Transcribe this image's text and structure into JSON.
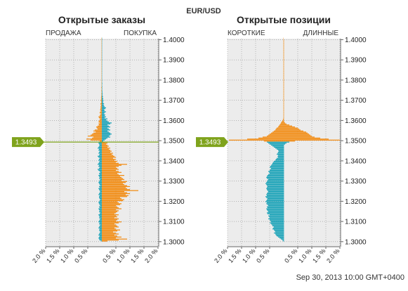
{
  "pair": "EUR/USD",
  "footer": "Sep 30, 2013 10:00 GMT+0400",
  "current_price": "1.3493",
  "colors": {
    "buy": "#1ba3b8",
    "sell": "#f28c13",
    "price_line": "#7fa31c",
    "panel_bg": "#ececec",
    "grid": "#8f8f8f"
  },
  "chart_data": [
    {
      "type": "bar",
      "title": "Открытые заказы",
      "left_label": "ПРОДАЖА",
      "right_label": "ПОКУПКА",
      "ylim": [
        1.2975,
        1.4005
      ],
      "xlim": [
        -2.0,
        2.0
      ],
      "x_ticks": [
        -2.0,
        -1.5,
        -1.0,
        -0.5,
        0.5,
        1.0,
        1.5,
        2.0
      ],
      "x_tick_labels": [
        "2.0 %",
        "1.5 %",
        "1.0 %",
        "0.5 %",
        "0.5 %",
        "1.0 %",
        "1.5 %",
        "2.0 %"
      ],
      "y_ticks": [
        1.3,
        1.31,
        1.32,
        1.33,
        1.34,
        1.35,
        1.36,
        1.37,
        1.38,
        1.39,
        1.4
      ],
      "y_tick_labels": [
        "1.3000",
        "1.3100",
        "1.3200",
        "1.3300",
        "1.3400",
        "1.3500",
        "1.3600",
        "1.3700",
        "1.3800",
        "1.3900",
        "1.4000"
      ],
      "price_bin_size": 0.0005,
      "series": [
        {
          "side": "left",
          "price_start": 1.3,
          "values": [
            0.02,
            0.08,
            0.1,
            0.12,
            0.1,
            0.08,
            0.12,
            0.1,
            0.08,
            0.06,
            0.08,
            0.1,
            0.08,
            0.12,
            0.1,
            0.08,
            0.06,
            0.1,
            0.08,
            0.12,
            0.1,
            0.08,
            0.06,
            0.1,
            0.08,
            0.1,
            0.12,
            0.08,
            0.06,
            0.1,
            0.08,
            0.1,
            0.12,
            0.08,
            0.1,
            0.06,
            0.08,
            0.1,
            0.12,
            0.1,
            0.08,
            0.06,
            0.08,
            0.1,
            0.1,
            0.08,
            0.12,
            0.1,
            0.08,
            0.06,
            0.08,
            0.1,
            0.12,
            0.08,
            0.1,
            0.06,
            0.08,
            0.1,
            0.12,
            0.1,
            0.08,
            0.06,
            0.1,
            0.08,
            0.1,
            0.12,
            0.08,
            0.1,
            0.06,
            0.08,
            0.12,
            0.15,
            0.1,
            0.08,
            0.12,
            0.1,
            0.15,
            0.12,
            0.1,
            0.08,
            0.12,
            0.1,
            0.08,
            0.12,
            0.15,
            0.1,
            0.08,
            0.12,
            0.1,
            0.08,
            0.12,
            0.1,
            0.15,
            0.12,
            0.1,
            0.08,
            0.1,
            0.12,
            0.1,
            0.08,
            0.4,
            0.55,
            0.35,
            0.3,
            0.5,
            0.4,
            0.35,
            0.3,
            0.22,
            0.3,
            0.25,
            0.15,
            0.18,
            0.2,
            0.15,
            0.1,
            0.12,
            0.08,
            0.12,
            0.1,
            0.08,
            0.06,
            0.1,
            0.12,
            0.08,
            0.06,
            0.04,
            0.08,
            0.06,
            0.04,
            0.06,
            0.05,
            0.04,
            0.05,
            0.03,
            0.04,
            0.05,
            0.03,
            0.02,
            0.04,
            0.03,
            0.02,
            0.03,
            0.02,
            0.02,
            0.01,
            0.02,
            0.01,
            0.01,
            0.02,
            0.01,
            0.01,
            0.02,
            0.01,
            0.01,
            0.01,
            0.01,
            0.01,
            0.01,
            0.01,
            0.01,
            0.01,
            0.01,
            0.01,
            0.01,
            0.01,
            0.01,
            0.01,
            0.01,
            0.01,
            0.01,
            0.01,
            0.01,
            0.01,
            0.01,
            0.01,
            0.01,
            0.01,
            0.01,
            0.01,
            0.01,
            0.01,
            0.01,
            0.01,
            0.01,
            0.01,
            0.01,
            0.01,
            0.01,
            0.01,
            0.01,
            0.01,
            0.01,
            0.01,
            0.01,
            0.01,
            0.01,
            0.01,
            0.01,
            0.01,
            0.01,
            0.01
          ],
          "colors_upper": "#f28c13",
          "colors_lower": "#1ba3b8"
        },
        {
          "side": "right",
          "price_start": 1.3,
          "values": [
            0.2,
            0.6,
            0.9,
            0.5,
            0.7,
            0.55,
            0.45,
            0.6,
            0.5,
            0.4,
            0.55,
            0.65,
            0.5,
            0.45,
            0.6,
            0.55,
            0.5,
            0.45,
            0.6,
            0.7,
            0.5,
            0.55,
            0.6,
            0.45,
            0.55,
            0.5,
            0.6,
            0.45,
            0.5,
            0.55,
            0.6,
            0.5,
            0.7,
            0.6,
            0.55,
            0.5,
            0.65,
            0.7,
            0.6,
            0.55,
            0.75,
            0.8,
            0.7,
            0.65,
            0.9,
            0.95,
            0.85,
            1.0,
            0.9,
            0.8,
            1.3,
            1.0,
            0.9,
            0.85,
            1.0,
            0.9,
            0.8,
            0.75,
            0.85,
            0.9,
            0.7,
            0.8,
            0.75,
            0.7,
            0.65,
            0.8,
            0.6,
            0.55,
            0.7,
            0.6,
            0.5,
            0.6,
            0.55,
            0.5,
            0.6,
            0.7,
            0.9,
            0.6,
            0.5,
            0.55,
            0.45,
            0.5,
            0.4,
            0.5,
            0.45,
            0.4,
            0.35,
            0.4,
            0.3,
            0.35,
            0.3,
            0.25,
            0.3,
            0.2,
            0.25,
            0.2,
            0.15,
            0.2,
            0.1,
            0.05,
            0.1,
            0.15,
            0.2,
            0.3,
            0.25,
            0.3,
            0.35,
            0.3,
            0.25,
            0.2,
            0.3,
            0.25,
            0.2,
            0.3,
            0.25,
            0.2,
            0.3,
            0.35,
            0.25,
            0.2,
            0.15,
            0.2,
            0.1,
            0.15,
            0.1,
            0.12,
            0.08,
            0.1,
            0.15,
            0.1,
            0.08,
            0.12,
            0.15,
            0.1,
            0.08,
            0.06,
            0.08,
            0.05,
            0.04,
            0.06,
            0.04,
            0.05,
            0.03,
            0.04,
            0.03,
            0.02,
            0.03,
            0.02,
            0.02,
            0.02,
            0.01,
            0.02,
            0.01,
            0.02,
            0.01,
            0.01,
            0.02,
            0.01,
            0.01,
            0.01,
            0.01,
            0.01,
            0.01,
            0.01,
            0.01,
            0.01,
            0.01,
            0.01,
            0.01,
            0.01,
            0.01,
            0.01,
            0.01,
            0.01,
            0.01,
            0.01,
            0.01,
            0.01,
            0.01,
            0.01,
            0.01,
            0.01,
            0.01,
            0.01,
            0.01,
            0.01,
            0.01,
            0.01,
            0.01,
            0.01,
            0.01,
            0.01,
            0.01,
            0.01,
            0.01,
            0.01,
            0.01,
            0.01,
            0.01,
            0.01,
            0.01,
            0.01,
            0.01,
            0.01,
            0.01,
            0.01,
            0.01,
            0.01
          ],
          "colors_upper": "#1ba3b8",
          "colors_lower": "#f28c13"
        }
      ]
    },
    {
      "type": "bar",
      "title": "Открытые позиции",
      "left_label": "КОРОТКИЕ",
      "right_label": "ДЛИННЫЕ",
      "ylim": [
        1.2975,
        1.4005
      ],
      "xlim": [
        -2.0,
        2.0
      ],
      "x_ticks": [
        -2.0,
        -1.5,
        -1.0,
        -0.5,
        0.5,
        1.0,
        1.5,
        2.0
      ],
      "x_tick_labels": [
        "2.0 %",
        "1.5 %",
        "1.0 %",
        "0.5 %",
        "0.5 %",
        "1.0 %",
        "1.5 %",
        "2.0 %"
      ],
      "y_ticks": [
        1.3,
        1.31,
        1.32,
        1.33,
        1.34,
        1.35,
        1.36,
        1.37,
        1.38,
        1.39,
        1.4
      ],
      "y_tick_labels": [
        "1.3000",
        "1.3100",
        "1.3200",
        "1.3300",
        "1.3400",
        "1.3500",
        "1.3600",
        "1.3700",
        "1.3800",
        "1.3900",
        "1.4000"
      ],
      "price_bin_size": 0.0005,
      "series": [
        {
          "side": "left",
          "price_start": 1.3,
          "values": [
            0.02,
            0.05,
            0.1,
            0.15,
            0.2,
            0.25,
            0.28,
            0.3,
            0.35,
            0.3,
            0.32,
            0.35,
            0.4,
            0.38,
            0.35,
            0.4,
            0.42,
            0.45,
            0.5,
            0.45,
            0.48,
            0.5,
            0.55,
            0.5,
            0.52,
            0.55,
            0.5,
            0.58,
            0.6,
            0.55,
            0.58,
            0.6,
            0.62,
            0.58,
            0.6,
            0.55,
            0.58,
            0.62,
            0.6,
            0.65,
            0.62,
            0.6,
            0.58,
            0.62,
            0.65,
            0.6,
            0.62,
            0.6,
            0.58,
            0.55,
            0.58,
            0.6,
            0.62,
            0.6,
            0.58,
            0.6,
            0.62,
            0.65,
            0.62,
            0.6,
            0.58,
            0.55,
            0.6,
            0.62,
            0.6,
            0.58,
            0.55,
            0.5,
            0.52,
            0.55,
            0.5,
            0.48,
            0.45,
            0.5,
            0.48,
            0.45,
            0.42,
            0.4,
            0.38,
            0.35,
            0.3,
            0.28,
            0.25,
            0.2,
            0.22,
            0.2,
            0.25,
            0.22,
            0.2,
            0.18,
            0.2,
            0.25,
            0.3,
            0.35,
            0.4,
            0.45,
            0.5,
            0.55,
            0.6,
            0.7,
            1.95,
            1.3,
            0.9,
            0.75,
            0.6,
            0.55,
            0.5,
            0.45,
            0.4,
            0.35,
            0.3,
            0.28,
            0.25,
            0.2,
            0.18,
            0.15,
            0.12,
            0.1,
            0.08,
            0.05,
            0.03,
            0.02,
            0.01,
            0.01,
            0.01,
            0.01,
            0.01,
            0.01,
            0.01,
            0.01,
            0.01,
            0.01,
            0.01,
            0.01,
            0.01,
            0.01,
            0.01,
            0.01,
            0.01,
            0.01,
            0.01,
            0.01,
            0.01,
            0.01,
            0.01,
            0.01,
            0.01,
            0.01,
            0.01,
            0.01,
            0.01,
            0.01,
            0.01,
            0.01,
            0.01,
            0.01,
            0.01,
            0.01,
            0.01,
            0.01,
            0.01,
            0.01,
            0.01,
            0.01,
            0.01,
            0.01,
            0.01,
            0.01,
            0.01,
            0.01,
            0.01,
            0.01,
            0.01,
            0.01,
            0.01,
            0.01,
            0.01,
            0.01,
            0.01,
            0.01,
            0.01,
            0.01,
            0.01,
            0.01,
            0.01,
            0.01,
            0.01,
            0.01,
            0.01,
            0.01,
            0.01,
            0.01,
            0.01,
            0.01,
            0.01,
            0.01,
            0.01,
            0.01,
            0.01,
            0.01,
            0.01,
            0.01,
            0.01,
            0.01,
            0.01,
            0.01,
            0.01,
            0.01
          ],
          "colors_upper": "#f28c13",
          "colors_lower": "#1ba3b8"
        },
        {
          "side": "right",
          "price_start": 1.3,
          "values": [
            0.01,
            0.01,
            0.01,
            0.01,
            0.01,
            0.01,
            0.01,
            0.01,
            0.01,
            0.01,
            0.01,
            0.01,
            0.01,
            0.01,
            0.01,
            0.01,
            0.01,
            0.01,
            0.01,
            0.01,
            0.01,
            0.01,
            0.01,
            0.01,
            0.01,
            0.01,
            0.01,
            0.01,
            0.01,
            0.01,
            0.01,
            0.01,
            0.01,
            0.01,
            0.01,
            0.01,
            0.01,
            0.01,
            0.01,
            0.01,
            0.01,
            0.01,
            0.01,
            0.01,
            0.01,
            0.01,
            0.01,
            0.01,
            0.01,
            0.01,
            0.01,
            0.01,
            0.01,
            0.01,
            0.01,
            0.01,
            0.01,
            0.01,
            0.01,
            0.01,
            0.01,
            0.01,
            0.01,
            0.01,
            0.01,
            0.01,
            0.01,
            0.01,
            0.01,
            0.01,
            0.01,
            0.01,
            0.01,
            0.01,
            0.01,
            0.01,
            0.01,
            0.01,
            0.01,
            0.01,
            0.01,
            0.01,
            0.01,
            0.01,
            0.01,
            0.01,
            0.01,
            0.01,
            0.01,
            0.01,
            0.01,
            0.01,
            0.01,
            0.01,
            0.01,
            0.01,
            0.05,
            0.1,
            0.2,
            0.4,
            2.0,
            1.6,
            1.3,
            1.1,
            1.0,
            0.95,
            0.9,
            0.85,
            0.8,
            0.7,
            0.6,
            0.55,
            0.5,
            0.4,
            0.3,
            0.2,
            0.1,
            0.05,
            0.02,
            0.01,
            0.01,
            0.01,
            0.01,
            0.01,
            0.01,
            0.01,
            0.01,
            0.01,
            0.01,
            0.01,
            0.01,
            0.01,
            0.01,
            0.01,
            0.01,
            0.01,
            0.01,
            0.01,
            0.01,
            0.01,
            0.01,
            0.01,
            0.01,
            0.01,
            0.01,
            0.01,
            0.01,
            0.01,
            0.01,
            0.01,
            0.01,
            0.01,
            0.01,
            0.01,
            0.01,
            0.01,
            0.01,
            0.01,
            0.01,
            0.01,
            0.01,
            0.01,
            0.01,
            0.01,
            0.01,
            0.01,
            0.01,
            0.01,
            0.01,
            0.01,
            0.01,
            0.01,
            0.01,
            0.01,
            0.01,
            0.01,
            0.01,
            0.01,
            0.01,
            0.01,
            0.01,
            0.01,
            0.01,
            0.01,
            0.01,
            0.01,
            0.01,
            0.01,
            0.01,
            0.01,
            0.01,
            0.01,
            0.01,
            0.01,
            0.01,
            0.01,
            0.01,
            0.01,
            0.01,
            0.01
          ],
          "colors_upper": "#f28c13",
          "colors_lower": "#1ba3b8"
        }
      ]
    }
  ]
}
